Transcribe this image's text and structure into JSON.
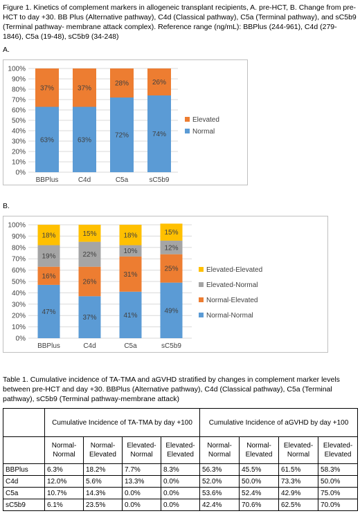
{
  "figure_caption": "Figure 1. Kinetics of complement markers in allogeneic transplant recipients, A. pre-HCT, B. Change from pre-HCT to day +30.  BB Plus (Alternative pathway), C4d (Classical pathway), C5a (Terminal pathway), and sC5b9 (Terminal pathway- membrane attack complex). Reference range (ng/mL): BBPlus (244-961), C4d (279-1846), C5a (19-48), sC5b9 (34-248)",
  "panel_a_label": "A.",
  "panel_b_label": "B.",
  "chart_data": [
    {
      "type": "bar",
      "stacked": true,
      "categories": [
        "BBPlus",
        "C4d",
        "C5a",
        "sC5b9"
      ],
      "series": [
        {
          "name": "Normal",
          "values": [
            63,
            63,
            72,
            74
          ],
          "labels": [
            "63%",
            "63%",
            "72%",
            "74%"
          ],
          "color": "#5b9bd5"
        },
        {
          "name": "Elevated",
          "values": [
            37,
            37,
            28,
            26
          ],
          "labels": [
            "37%",
            "37%",
            "28%",
            "26%"
          ],
          "color": "#ed7d31"
        }
      ],
      "ylim": [
        0,
        100
      ],
      "yticks": [
        "0%",
        "10%",
        "20%",
        "30%",
        "40%",
        "50%",
        "60%",
        "70%",
        "80%",
        "90%",
        "100%"
      ],
      "grid": true,
      "legend": "right",
      "legend_order": [
        "Elevated",
        "Normal"
      ]
    },
    {
      "type": "bar",
      "stacked": true,
      "categories": [
        "BBPlus",
        "C4d",
        "C5a",
        "sC5b9"
      ],
      "series": [
        {
          "name": "Normal-Normal",
          "values": [
            47,
            37,
            41,
            49
          ],
          "labels": [
            "47%",
            "37%",
            "41%",
            "49%"
          ],
          "color": "#5b9bd5"
        },
        {
          "name": "Normal-Elevated",
          "values": [
            16,
            26,
            31,
            25
          ],
          "labels": [
            "16%",
            "26%",
            "31%",
            "25%"
          ],
          "color": "#ed7d31"
        },
        {
          "name": "Elevated-Normal",
          "values": [
            19,
            22,
            10,
            12
          ],
          "labels": [
            "19%",
            "22%",
            "10%",
            "12%"
          ],
          "color": "#a5a5a5"
        },
        {
          "name": "Elevated-Elevated",
          "values": [
            18,
            15,
            18,
            15
          ],
          "labels": [
            "18%",
            "15%",
            "18%",
            "15%"
          ],
          "color": "#ffc000"
        }
      ],
      "ylim": [
        0,
        100
      ],
      "yticks": [
        "0%",
        "10%",
        "20%",
        "30%",
        "40%",
        "50%",
        "60%",
        "70%",
        "80%",
        "90%",
        "100%"
      ],
      "grid": true,
      "legend": "right",
      "legend_order": [
        "Elevated-Elevated",
        "Elevated-Normal",
        "Normal-Elevated",
        "Normal-Normal"
      ]
    }
  ],
  "table_caption": "Table 1. Cumulative incidence of TA-TMA and aGVHD stratified by changes in complement marker levels between pre-HCT and day +30. BBPlus (Alternative pathway), C4d (Classical pathway), C5a (Terminal pathway), sC5b9 (Terminal pathway-membrane attack)",
  "table": {
    "group_headers": [
      "Cumulative Incidence of TA-TMA by day +100",
      "Cumulative Incidence of aGVHD by day +100"
    ],
    "sub_headers": [
      "Normal-Normal",
      "Normal-Elevated",
      "Elevated-Normal",
      "Elevated-Elevated",
      "Normal-Normal",
      "Normal-Elevated",
      "Elevated-Normal",
      "Elevated-Elevated"
    ],
    "rows": [
      {
        "label": "BBPlus",
        "values": [
          "6.3%",
          "18.2%",
          "7.7%",
          "8.3%",
          "56.3%",
          "45.5%",
          "61.5%",
          "58.3%"
        ]
      },
      {
        "label": "C4d",
        "values": [
          "12.0%",
          "5.6%",
          "13.3%",
          "0.0%",
          "52.0%",
          "50.0%",
          "73.3%",
          "50.0%"
        ]
      },
      {
        "label": "C5a",
        "values": [
          "10.7%",
          "14.3%",
          "0.0%",
          "0.0%",
          "53.6%",
          "52.4%",
          "42.9%",
          "75.0%"
        ]
      },
      {
        "label": "sC5b9",
        "values": [
          "6.1%",
          "23.5%",
          "0.0%",
          "0.0%",
          "42.4%",
          "70.6%",
          "62.5%",
          "70.0%"
        ]
      }
    ]
  }
}
